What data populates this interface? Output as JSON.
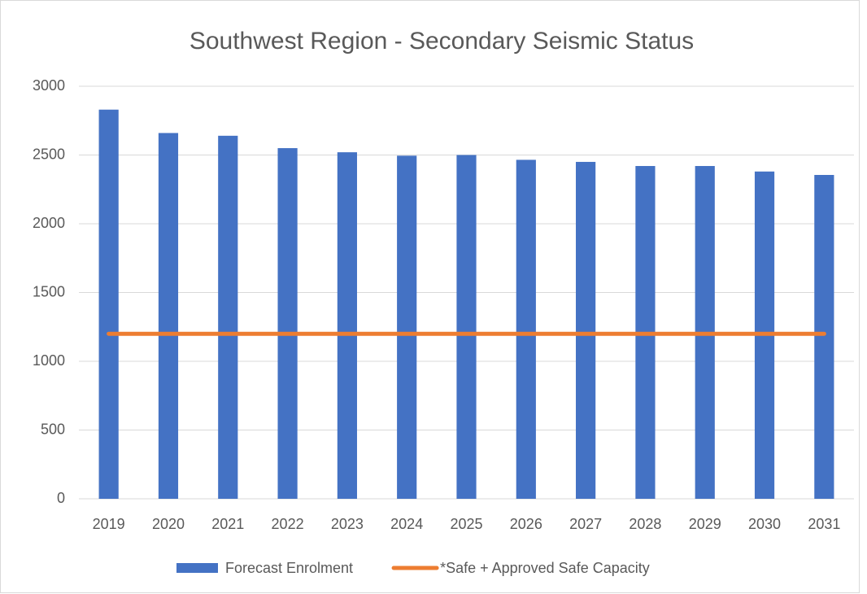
{
  "chart_data": {
    "type": "bar",
    "title": "Southwest Region - Secondary Seismic Status",
    "categories": [
      "2019",
      "2020",
      "2021",
      "2022",
      "2023",
      "2024",
      "2025",
      "2026",
      "2027",
      "2028",
      "2029",
      "2030",
      "2031"
    ],
    "series": [
      {
        "name": "Forecast Enrolment",
        "type": "bar",
        "color": "#4472c4",
        "values": [
          2830,
          2660,
          2640,
          2550,
          2520,
          2495,
          2500,
          2465,
          2450,
          2420,
          2420,
          2380,
          2355
        ]
      },
      {
        "name": "*Safe + Approved Safe Capacity",
        "type": "line",
        "color": "#ed7d31",
        "values": [
          1200,
          1200,
          1200,
          1200,
          1200,
          1200,
          1200,
          1200,
          1200,
          1200,
          1200,
          1200,
          1200
        ]
      }
    ],
    "ylim": [
      0,
      3000
    ],
    "yticks": [
      0,
      500,
      1000,
      1500,
      2000,
      2500,
      3000
    ],
    "grid": true,
    "legend": "bottom"
  }
}
